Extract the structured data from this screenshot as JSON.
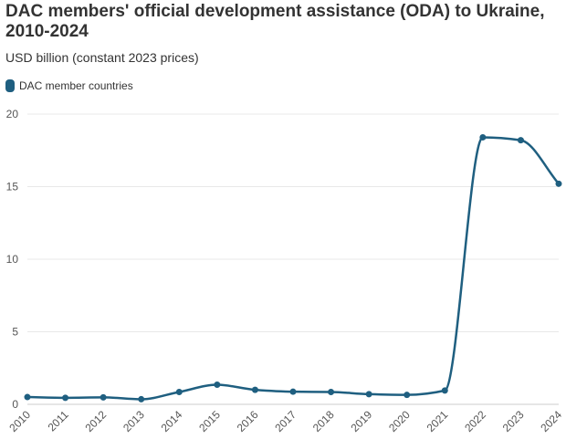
{
  "chart_data": {
    "type": "line",
    "title": "DAC members' official development assistance (ODA) to Ukraine, 2010-2024",
    "subtitle": "USD billion (constant 2023 prices)",
    "xlabel": "",
    "ylabel": "",
    "x": [
      "2010",
      "2011",
      "2012",
      "2013",
      "2014",
      "2015",
      "2016",
      "2017",
      "2018",
      "2019",
      "2020",
      "2021",
      "2022",
      "2023",
      "2024"
    ],
    "series": [
      {
        "name": "DAC member countries",
        "color": "#1f5f80",
        "values": [
          0.5,
          0.45,
          0.48,
          0.35,
          0.85,
          1.35,
          1.0,
          0.87,
          0.85,
          0.7,
          0.65,
          0.95,
          18.4,
          18.2,
          15.2
        ]
      }
    ],
    "ylim": [
      0,
      20
    ],
    "yticks": [
      "0",
      "5",
      "10",
      "15",
      "20"
    ],
    "grid": true,
    "legend_position": "top-left"
  }
}
